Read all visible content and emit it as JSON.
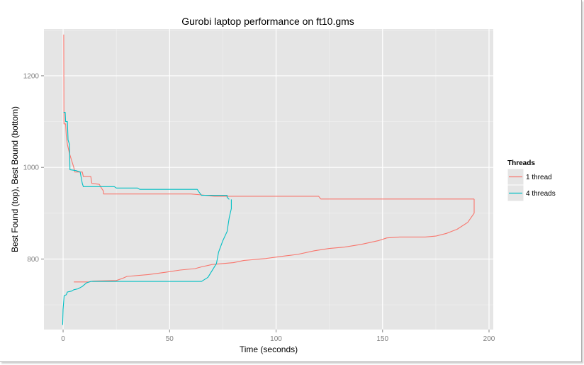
{
  "chart_data": {
    "type": "line",
    "title": "Gurobi laptop performance on ft10.gms",
    "xlabel": "Time (seconds)",
    "ylabel": "Best Found (top), Best Bound (bottom)",
    "xlim": [
      -9,
      202
    ],
    "ylim": [
      646,
      1302
    ],
    "xticks": [
      0,
      50,
      100,
      150,
      200
    ],
    "yticks": [
      800,
      1000,
      1200
    ],
    "grid": true,
    "legend": {
      "title": "Threads",
      "position": "right"
    },
    "series": [
      {
        "name": "1 thread",
        "color": "#F8766D",
        "segments": [
          {
            "label": "best found",
            "points": [
              [
                0.3,
                1290
              ],
              [
                0.4,
                1095
              ],
              [
                1.2,
                1095
              ],
              [
                1.5,
                1070
              ],
              [
                2,
                1050
              ],
              [
                3,
                1030
              ],
              [
                4,
                1015
              ],
              [
                5,
                1000
              ],
              [
                5.5,
                990
              ],
              [
                9,
                990
              ],
              [
                9.5,
                980
              ],
              [
                13,
                980
              ],
              [
                13.5,
                965
              ],
              [
                17,
                963
              ],
              [
                18,
                955
              ],
              [
                19,
                948
              ],
              [
                19,
                942
              ],
              [
                60,
                942
              ],
              [
                65,
                940
              ],
              [
                71,
                937
              ],
              [
                120,
                937
              ],
              [
                121,
                931
              ],
              [
                193,
                931
              ]
            ]
          },
          {
            "label": "best bound",
            "points": [
              [
                5,
                750
              ],
              [
                12,
                750
              ],
              [
                14,
                752
              ],
              [
                25,
                753
              ],
              [
                28,
                758
              ],
              [
                30,
                762
              ],
              [
                40,
                766
              ],
              [
                48,
                771
              ],
              [
                55,
                776
              ],
              [
                62,
                779
              ],
              [
                65,
                783
              ],
              [
                70,
                788
              ],
              [
                80,
                792
              ],
              [
                85,
                797
              ],
              [
                95,
                801
              ],
              [
                103,
                806
              ],
              [
                110,
                810
              ],
              [
                118,
                818
              ],
              [
                125,
                823
              ],
              [
                132,
                826
              ],
              [
                140,
                832
              ],
              [
                148,
                840
              ],
              [
                152,
                846
              ],
              [
                158,
                848
              ],
              [
                170,
                848
              ],
              [
                175,
                850
              ],
              [
                180,
                856
              ],
              [
                185,
                865
              ],
              [
                190,
                880
              ],
              [
                193,
                900
              ],
              [
                193,
                920
              ],
              [
                193,
                931
              ]
            ]
          }
        ]
      },
      {
        "name": "4 threads",
        "color": "#00BFC4",
        "segments": [
          {
            "label": "best found",
            "points": [
              [
                0.2,
                1120
              ],
              [
                1,
                1120
              ],
              [
                1.2,
                1100
              ],
              [
                2,
                1100
              ],
              [
                2.3,
                1060
              ],
              [
                3,
                1050
              ],
              [
                3.2,
                995
              ],
              [
                6,
                993
              ],
              [
                8,
                990
              ],
              [
                9,
                965
              ],
              [
                9.5,
                958
              ],
              [
                24,
                958
              ],
              [
                25,
                955
              ],
              [
                35,
                955
              ],
              [
                36,
                952
              ],
              [
                63,
                952
              ],
              [
                64,
                945
              ],
              [
                65,
                939
              ],
              [
                77,
                939
              ],
              [
                77,
                935
              ],
              [
                78,
                930
              ]
            ]
          },
          {
            "label": "best bound",
            "points": [
              [
                -0.2,
                656
              ],
              [
                0,
                690
              ],
              [
                0.5,
                720
              ],
              [
                1.5,
                722
              ],
              [
                2,
                728
              ],
              [
                4,
                730
              ],
              [
                5,
                733
              ],
              [
                7,
                735
              ],
              [
                9,
                740
              ],
              [
                11,
                748
              ],
              [
                13,
                751
              ],
              [
                20,
                751
              ],
              [
                40,
                751
              ],
              [
                65,
                751
              ],
              [
                68,
                760
              ],
              [
                70,
                775
              ],
              [
                72,
                790
              ],
              [
                73,
                815
              ],
              [
                75,
                840
              ],
              [
                77,
                860
              ],
              [
                78,
                890
              ],
              [
                79,
                910
              ],
              [
                79,
                930
              ]
            ]
          }
        ]
      }
    ]
  }
}
